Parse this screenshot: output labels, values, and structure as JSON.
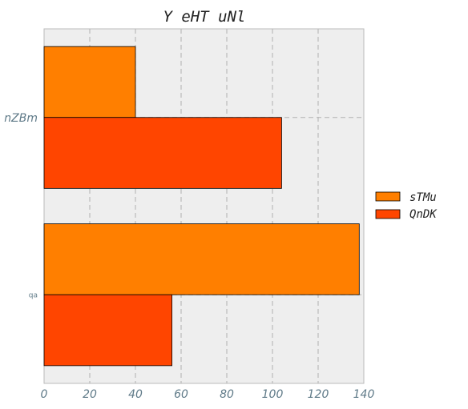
{
  "chart_data": {
    "type": "bar",
    "orientation": "horizontal",
    "title": "Y eHT uNl",
    "xlabel": "",
    "ylabel": "",
    "categories": [
      "nZBm",
      "qa"
    ],
    "series": [
      {
        "name": "sTMu",
        "values": [
          40,
          138
        ],
        "color": "#ff7f00"
      },
      {
        "name": "QnDK",
        "values": [
          104,
          56
        ],
        "color": "#ff4500"
      }
    ],
    "xlim": [
      0,
      140
    ],
    "xticks": [
      "0",
      "20",
      "40",
      "60",
      "80",
      "100",
      "120",
      "140"
    ],
    "grid": true,
    "legend_position": "right",
    "background_color": "#eeeeee"
  }
}
